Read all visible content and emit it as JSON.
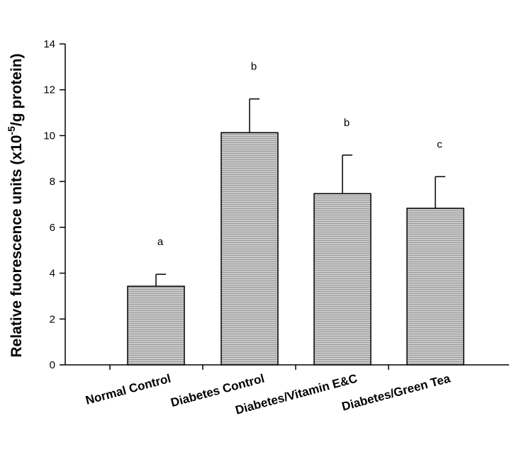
{
  "chart_data": {
    "type": "bar",
    "ylabel_main": "Relative fuorescence units (x10",
    "ylabel_exp": "-5",
    "ylabel_tail": "/g protein)",
    "ylim": [
      0,
      14
    ],
    "yticks": [
      0,
      2,
      4,
      6,
      8,
      10,
      12,
      14
    ],
    "categories": [
      "Normal Control",
      "Diabetes Control",
      "Diabetes/Vitamin E&C",
      "Diabetes/Green Tea"
    ],
    "values": [
      3.43,
      10.13,
      7.47,
      6.83
    ],
    "errors": [
      0.52,
      1.47,
      1.68,
      1.38
    ],
    "significance": [
      "a",
      "b",
      "b",
      "c"
    ],
    "grid": false,
    "bar_color": "#b8b8b8"
  }
}
